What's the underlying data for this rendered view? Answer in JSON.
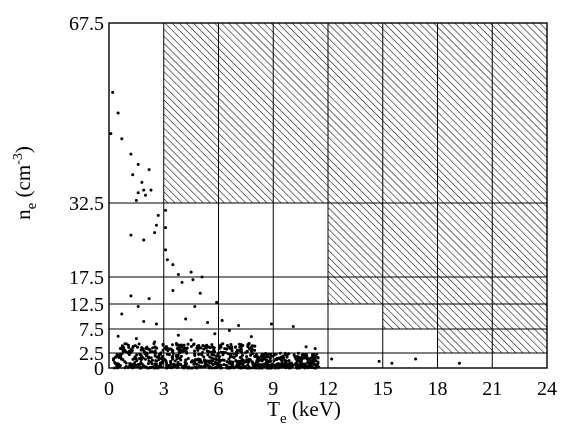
{
  "chart_data": {
    "type": "scatter",
    "xlabel": {
      "main": "T",
      "sub": "e",
      "unit": " (keV)"
    },
    "ylabel": {
      "main": "n",
      "sub": "e",
      "unit_open": " (cm",
      "sup": "-3",
      "unit_close": ")"
    },
    "xlim": [
      0,
      24
    ],
    "ylim": [
      0,
      67.5
    ],
    "y_scale": "piecewise-linear",
    "y_breaks": [
      0,
      2.5,
      7.5,
      12.5,
      17.5,
      32.5,
      67.5
    ],
    "x_ticks": [
      {
        "value": 0,
        "label": "0"
      },
      {
        "value": 3,
        "label": "3"
      },
      {
        "value": 6,
        "label": "6"
      },
      {
        "value": 9,
        "label": "9"
      },
      {
        "value": 12,
        "label": "12"
      },
      {
        "value": 15,
        "label": "15"
      },
      {
        "value": 18,
        "label": "18"
      },
      {
        "value": 21,
        "label": "21"
      },
      {
        "value": 24,
        "label": "24"
      }
    ],
    "y_ticks": [
      {
        "value": 0,
        "label": "0"
      },
      {
        "value": 2.5,
        "label": "2.5"
      },
      {
        "value": 7.5,
        "label": "7.5"
      },
      {
        "value": 12.5,
        "label": "12.5"
      },
      {
        "value": 17.5,
        "label": "17.5"
      },
      {
        "value": 32.5,
        "label": "32.5"
      },
      {
        "value": 67.5,
        "label": "67.5"
      }
    ],
    "grid_lines": {
      "vertical": [
        {
          "x": 3,
          "y0": 0,
          "y1": 67.5
        },
        {
          "x": 6,
          "y0": 0,
          "y1": 67.5
        },
        {
          "x": 9,
          "y0": 0,
          "y1": 67.5
        },
        {
          "x": 12,
          "y0": 0,
          "y1": 67.5
        },
        {
          "x": 15,
          "y0": 0,
          "y1": 67.5
        },
        {
          "x": 18,
          "y0": 0,
          "y1": 67.5
        },
        {
          "x": 21,
          "y0": 0,
          "y1": 67.5
        }
      ],
      "horizontal": [
        {
          "y": 2.5,
          "x0": 0,
          "x1": 24
        },
        {
          "y": 7.5,
          "x0": 0,
          "x1": 24
        },
        {
          "y": 12.5,
          "x0": 0,
          "x1": 24
        },
        {
          "y": 17.5,
          "x0": 0,
          "x1": 24
        },
        {
          "y": 32.5,
          "x0": 0,
          "x1": 24
        }
      ]
    },
    "hatched_regions": [
      {
        "x": [
          3,
          24
        ],
        "y": [
          32.5,
          67.5
        ]
      },
      {
        "x": [
          12,
          24
        ],
        "y": [
          12.5,
          32.5
        ]
      },
      {
        "x": [
          15,
          24
        ],
        "y": [
          7.5,
          12.5
        ]
      },
      {
        "x": [
          18,
          24
        ],
        "y": [
          2.5,
          7.5
        ]
      }
    ],
    "scatter_points": [
      [
        0.2,
        54
      ],
      [
        0.5,
        50
      ],
      [
        0.1,
        46
      ],
      [
        0.7,
        45
      ],
      [
        1.2,
        42
      ],
      [
        1.6,
        40
      ],
      [
        2.2,
        39
      ],
      [
        1.3,
        38
      ],
      [
        1.8,
        36.5
      ],
      [
        1.9,
        35
      ],
      [
        1.6,
        34.5
      ],
      [
        2.3,
        35
      ],
      [
        1.5,
        33
      ],
      [
        2.0,
        34
      ],
      [
        2.7,
        30
      ],
      [
        3.1,
        31
      ],
      [
        1.2,
        26
      ],
      [
        3.1,
        27.5
      ],
      [
        2.6,
        28
      ],
      [
        2.5,
        26.5
      ],
      [
        1.9,
        25
      ],
      [
        3.1,
        23
      ],
      [
        3.2,
        21
      ],
      [
        3.5,
        20
      ],
      [
        4.5,
        18.5
      ],
      [
        3.8,
        18
      ],
      [
        5.1,
        17.5
      ],
      [
        4.6,
        17
      ],
      [
        4.0,
        16.5
      ],
      [
        1.2,
        14
      ],
      [
        2.2,
        13.5
      ],
      [
        1.6,
        12
      ],
      [
        3.5,
        15
      ],
      [
        5.0,
        14.5
      ],
      [
        4.7,
        12
      ],
      [
        5.9,
        12.8
      ],
      [
        0.7,
        10.5
      ],
      [
        1.9,
        9
      ],
      [
        2.6,
        8.5
      ],
      [
        4.2,
        9.5
      ],
      [
        5.4,
        8.8
      ],
      [
        8.9,
        8.5
      ],
      [
        7.1,
        8.2
      ],
      [
        6.2,
        9.2
      ],
      [
        0.5,
        6
      ],
      [
        1.5,
        5.5
      ],
      [
        2.5,
        4.8
      ],
      [
        3.8,
        6.2
      ],
      [
        4.5,
        5.2
      ],
      [
        5.8,
        6.5
      ],
      [
        6.6,
        7.2
      ],
      [
        7.8,
        5.9
      ],
      [
        10.1,
        8
      ],
      [
        10.8,
        3.8
      ],
      [
        11.3,
        3.4
      ],
      [
        12.2,
        1.5
      ],
      [
        14.8,
        1.1
      ],
      [
        15.5,
        0.8
      ],
      [
        16.8,
        1.5
      ],
      [
        19.2,
        0.8
      ]
    ],
    "dense_cluster": {
      "x": [
        0.2,
        11.5
      ],
      "y": [
        0,
        4.5
      ],
      "count": 900
    }
  }
}
